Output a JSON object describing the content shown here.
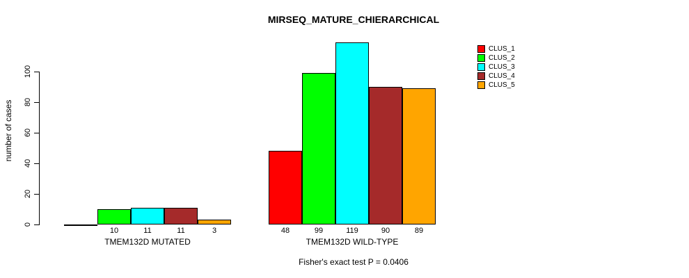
{
  "title": "MIRSEQ_MATURE_CHIERARCHICAL",
  "ylabel": "number of cases",
  "footer": "Fisher's exact test P = 0.0406",
  "chart_data": {
    "type": "bar",
    "title": "MIRSEQ_MATURE_CHIERARCHICAL",
    "xlabel": "",
    "ylabel": "number of cases",
    "yticks": [
      0,
      20,
      40,
      60,
      80,
      100
    ],
    "ylim": [
      0,
      123
    ],
    "grid": false,
    "legend_position": "top-right",
    "series_labels": [
      "CLUS_1",
      "CLUS_2",
      "CLUS_3",
      "CLUS_4",
      "CLUS_5"
    ],
    "series_colors": [
      "#FF0000",
      "#00FF00",
      "#00FFFF",
      "#A52A2A",
      "#FFA500"
    ],
    "groups": [
      {
        "label": "TMEM132D MUTATED",
        "values": [
          0,
          10,
          11,
          11,
          3
        ]
      },
      {
        "label": "TMEM132D WILD-TYPE",
        "values": [
          48,
          99,
          119,
          90,
          89
        ]
      }
    ],
    "bar_value_labels_shown": true,
    "zero_value_labels_hidden": true,
    "annotation": "Fisher's exact test P = 0.0406"
  }
}
